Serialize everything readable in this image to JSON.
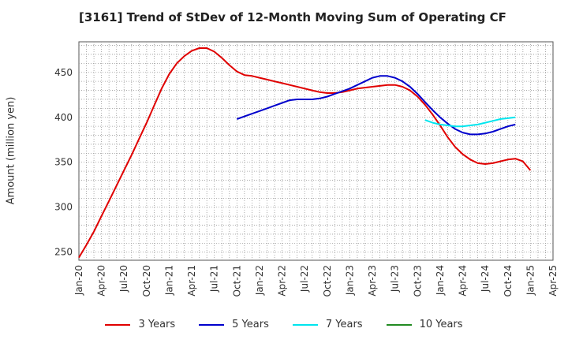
{
  "chart_data": {
    "type": "line",
    "title": "[3161]  Trend of StDev of 12-Month Moving Sum of Operating CF",
    "xlabel": "",
    "ylabel": "Amount (million yen)",
    "ylim": [
      241,
      484
    ],
    "yticks": [
      250,
      300,
      350,
      400,
      450
    ],
    "xticks": [
      "Jan-20",
      "Apr-20",
      "Jul-20",
      "Oct-20",
      "Jan-21",
      "Apr-21",
      "Jul-21",
      "Oct-21",
      "Jan-22",
      "Apr-22",
      "Jul-22",
      "Oct-22",
      "Jan-23",
      "Apr-23",
      "Jul-23",
      "Oct-23",
      "Jan-24",
      "Apr-24",
      "Jul-24",
      "Oct-24",
      "Jan-25",
      "Apr-25"
    ],
    "grid": true,
    "legend_position": "bottom",
    "series": [
      {
        "name": "3 Years",
        "color": "#e00000",
        "start_index": 0,
        "values": [
          244,
          258,
          273,
          290,
          307,
          324,
          341,
          358,
          376,
          394,
          413,
          432,
          448,
          460,
          468,
          474,
          477,
          477,
          473,
          466,
          458,
          451,
          447,
          446,
          444,
          442,
          440,
          438,
          436,
          434,
          432,
          430,
          428,
          427,
          427,
          428,
          430,
          432,
          433,
          434,
          435,
          436,
          436,
          434,
          430,
          423,
          414,
          403,
          391,
          378,
          367,
          359,
          353,
          349,
          348,
          349,
          351,
          353,
          354,
          351,
          341
        ]
      },
      {
        "name": "5 Years",
        "color": "#0000cc",
        "start_index": 21,
        "values": [
          398,
          401,
          404,
          407,
          410,
          413,
          416,
          419,
          420,
          420,
          420,
          421,
          423,
          426,
          429,
          432,
          436,
          440,
          444,
          446,
          446,
          444,
          440,
          434,
          426,
          417,
          408,
          400,
          393,
          387,
          383,
          381,
          381,
          382,
          384,
          387,
          390,
          392
        ]
      },
      {
        "name": "7 Years",
        "color": "#00e5ee",
        "start_index": 46,
        "values": [
          397,
          394,
          392,
          391,
          390,
          390,
          391,
          392,
          394,
          396,
          398,
          399,
          400
        ]
      },
      {
        "name": "10 Years",
        "color": "#228b22",
        "start_index": 0,
        "values": []
      }
    ]
  }
}
